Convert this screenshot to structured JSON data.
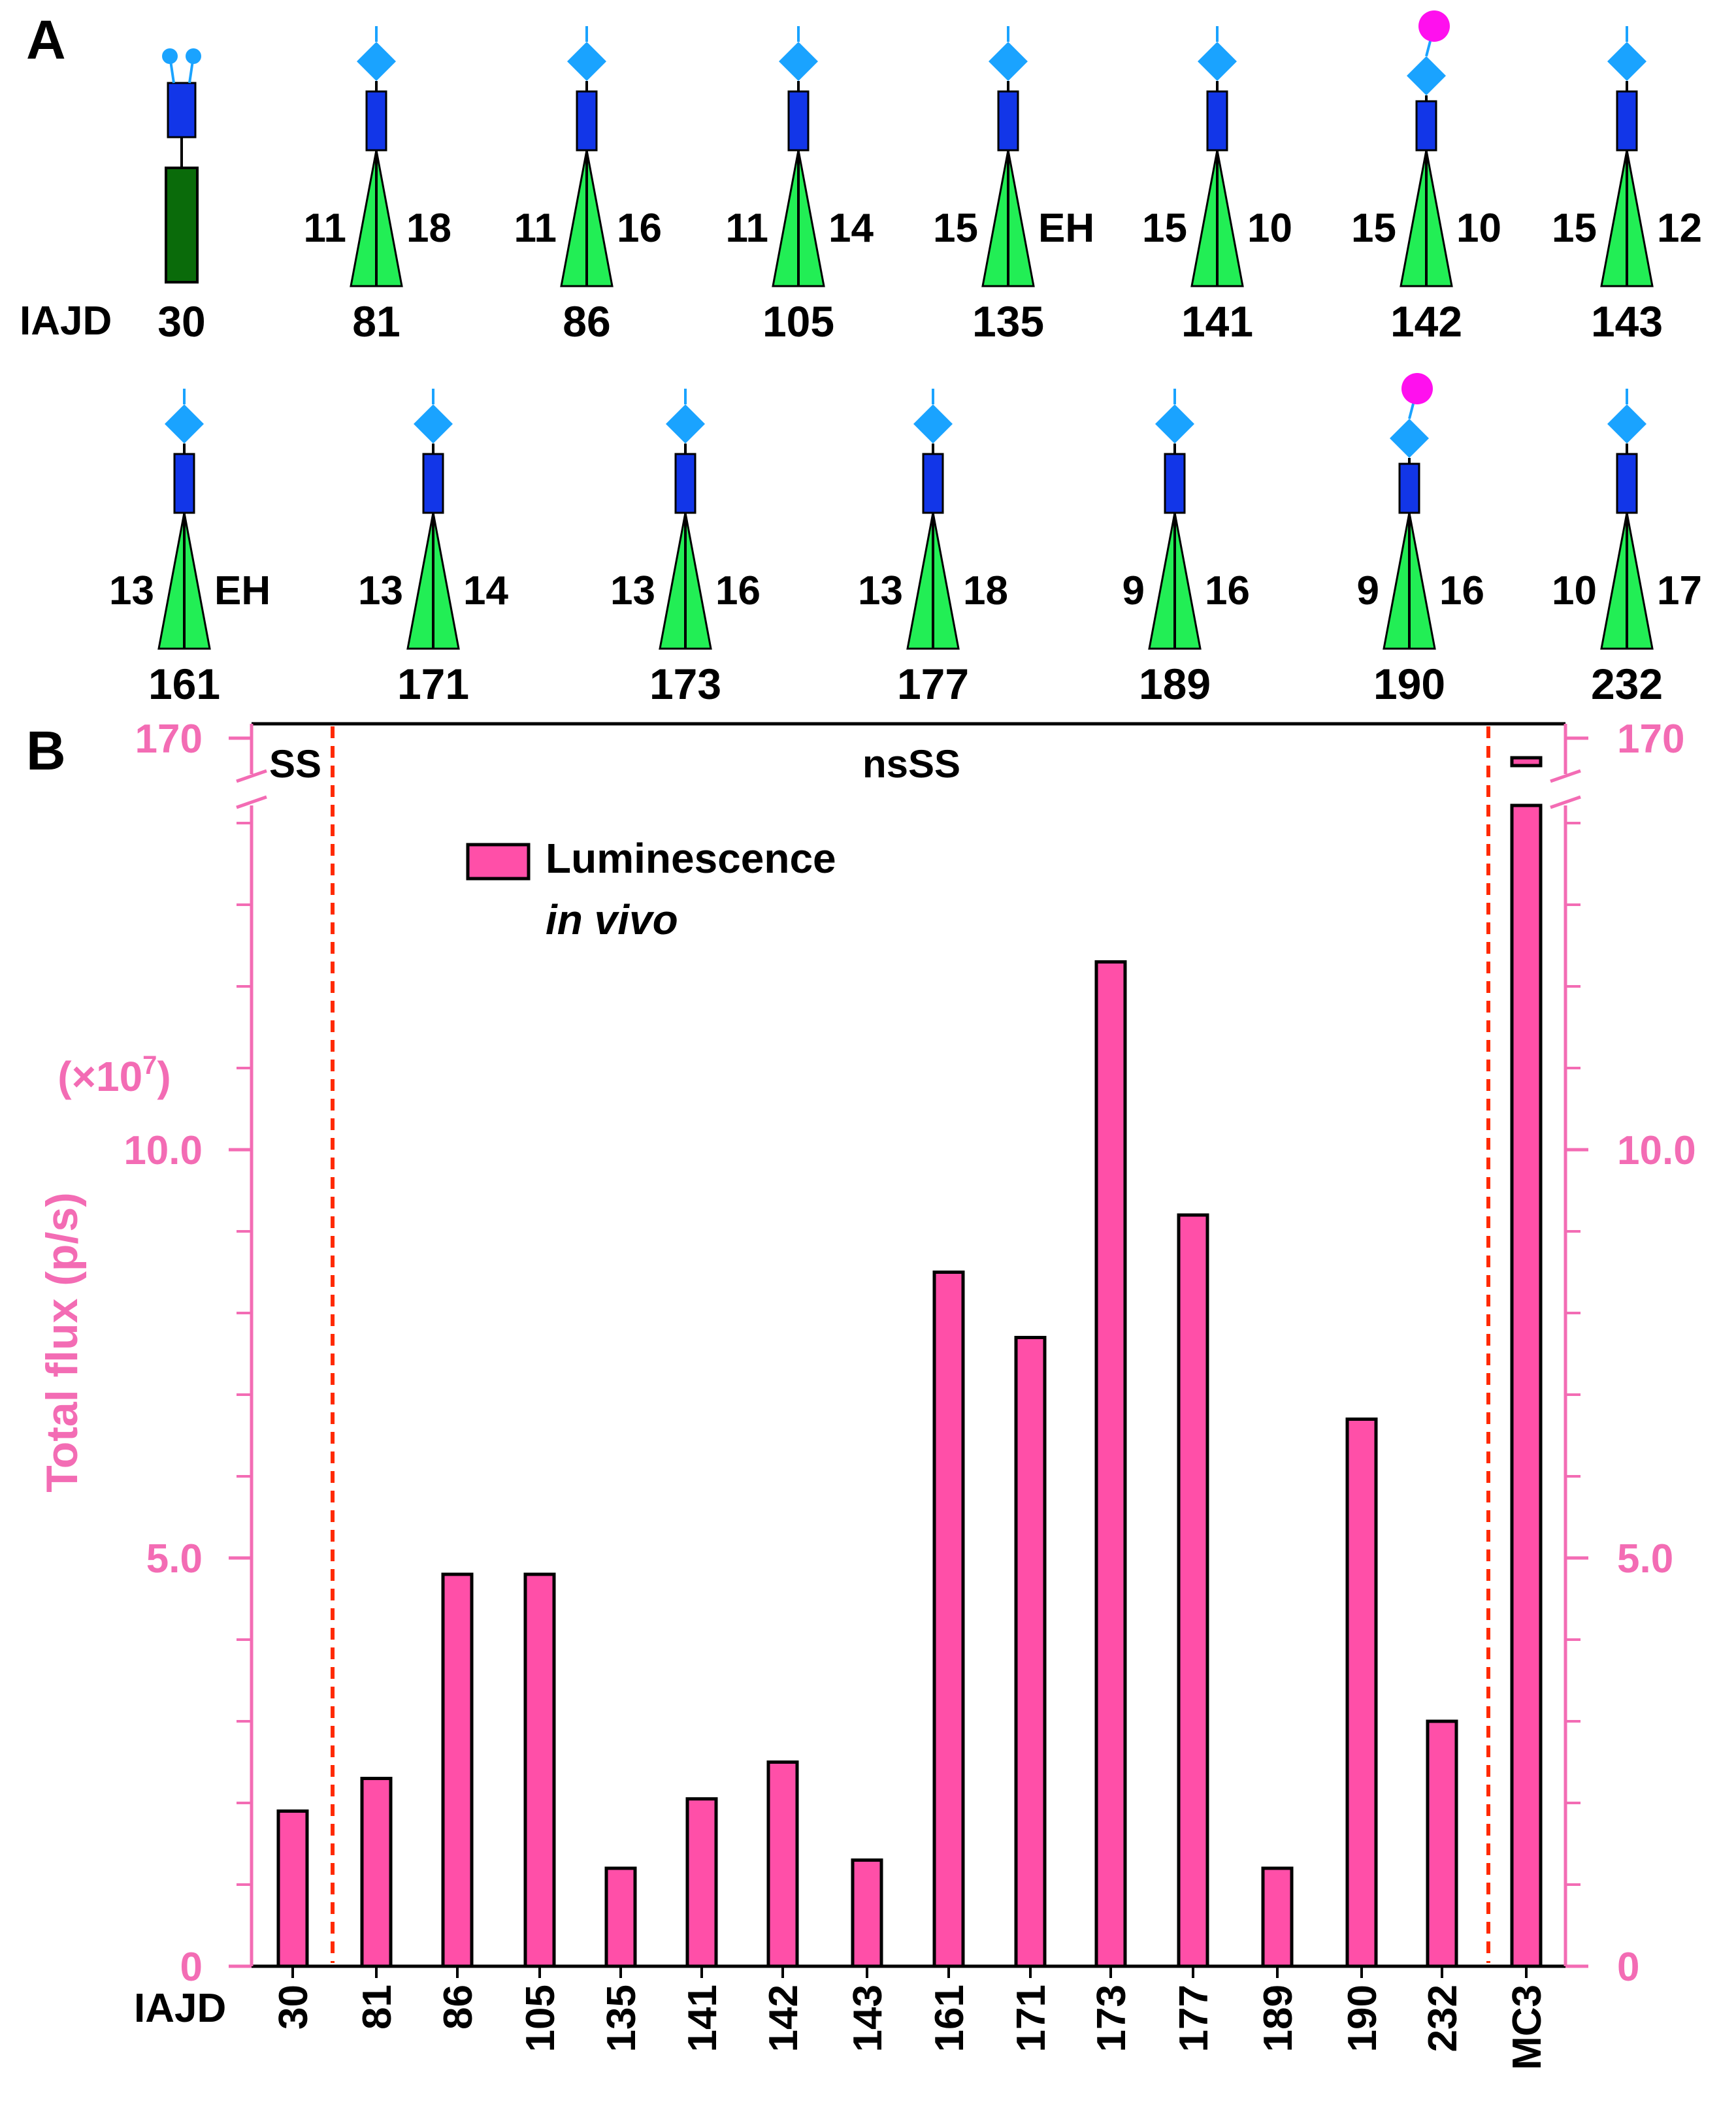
{
  "panel_a": {
    "label": "A",
    "row_prefix": "IAJD",
    "structures": [
      {
        "id": "30",
        "left": "",
        "right": "",
        "type": "SS",
        "sialic": false
      },
      {
        "id": "81",
        "left": "11",
        "right": "18",
        "type": "nsSS",
        "sialic": false
      },
      {
        "id": "86",
        "left": "11",
        "right": "16",
        "type": "nsSS",
        "sialic": false
      },
      {
        "id": "105",
        "left": "11",
        "right": "14",
        "type": "nsSS",
        "sialic": false
      },
      {
        "id": "135",
        "left": "15",
        "right": "EH",
        "type": "nsSS",
        "sialic": false
      },
      {
        "id": "141",
        "left": "15",
        "right": "10",
        "type": "nsSS",
        "sialic": false
      },
      {
        "id": "142",
        "left": "15",
        "right": "10",
        "type": "nsSS",
        "sialic": true
      },
      {
        "id": "143",
        "left": "15",
        "right": "12",
        "type": "nsSS",
        "sialic": false
      },
      {
        "id": "161",
        "left": "13",
        "right": "EH",
        "type": "nsSS",
        "sialic": false
      },
      {
        "id": "171",
        "left": "13",
        "right": "14",
        "type": "nsSS",
        "sialic": false
      },
      {
        "id": "173",
        "left": "13",
        "right": "16",
        "type": "nsSS",
        "sialic": false
      },
      {
        "id": "177",
        "left": "13",
        "right": "18",
        "type": "nsSS",
        "sialic": false
      },
      {
        "id": "189",
        "left": "9",
        "right": "16",
        "type": "nsSS",
        "sialic": false
      },
      {
        "id": "190",
        "left": "9",
        "right": "16",
        "type": "nsSS",
        "sialic": true
      },
      {
        "id": "232",
        "left": "10",
        "right": "17",
        "type": "nsSS",
        "sialic": false
      }
    ]
  },
  "panel_b": {
    "label": "B",
    "region_ss": "SS",
    "region_nsss": "nsSS",
    "legend_line1": "Luminescence",
    "legend_line2": "in vivo",
    "ylabel": "Total flux (p/s)",
    "yscale_base": "(×10",
    "yscale_exp": "7",
    "yscale_close": ")",
    "x_prefix": "IAJD",
    "yticks": [
      {
        "value": 0,
        "label": "0"
      },
      {
        "value": 5,
        "label": "5.0"
      },
      {
        "value": 10,
        "label": "10.0"
      },
      {
        "value": 170,
        "label": "170"
      }
    ]
  },
  "chart_data": {
    "type": "bar",
    "title": "",
    "xlabel": "IAJD",
    "ylabel": "Total flux (p/s) (×10^7)",
    "ylim": [
      0,
      170
    ],
    "axis_break": [
      14.2,
      169
    ],
    "categories": [
      "30",
      "81",
      "86",
      "105",
      "135",
      "141",
      "142",
      "143",
      "161",
      "171",
      "173",
      "177",
      "189",
      "190",
      "232",
      "MC3"
    ],
    "series": [
      {
        "name": "Luminescence in vivo",
        "values": [
          1.9,
          2.3,
          4.8,
          4.8,
          1.2,
          2.05,
          2.5,
          1.3,
          8.5,
          7.7,
          12.3,
          9.2,
          1.2,
          6.7,
          3.0,
          168.5
        ]
      }
    ],
    "colors": {
      "bar": "#ff4fa8",
      "axis": "#f36cb4",
      "divider": "#ff2a00",
      "frame": "#000000"
    }
  }
}
